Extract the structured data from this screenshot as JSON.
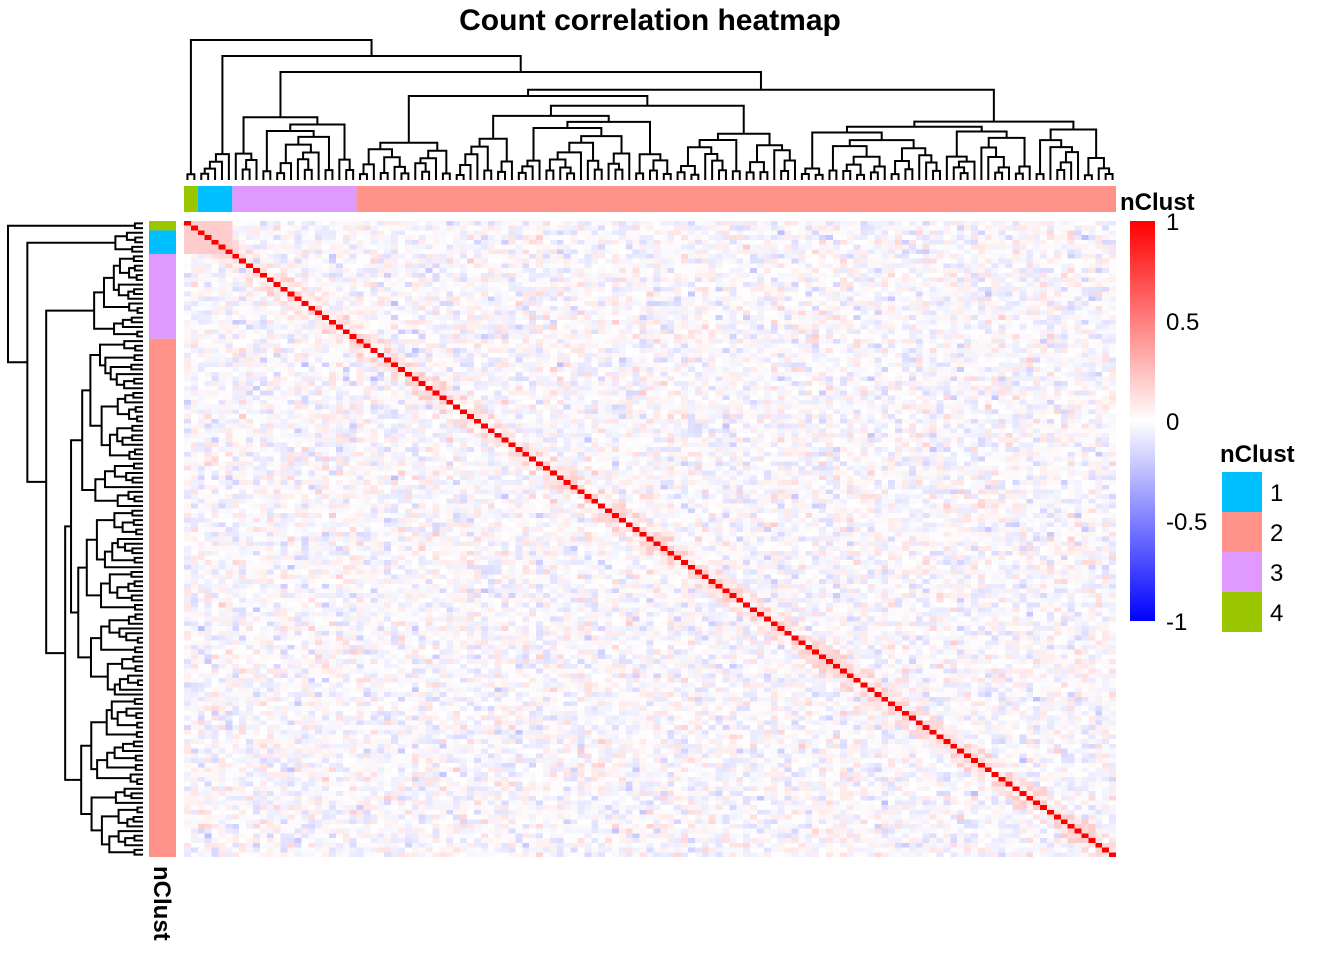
{
  "chart_data": {
    "type": "heatmap",
    "title": "Count correlation heatmap",
    "matrix_size": 135,
    "diagonal_value": 1,
    "off_diagonal_typical_range": [
      -0.25,
      0.2
    ],
    "value_scale": {
      "min": -1,
      "max": 1,
      "colors": {
        "low": "#0000FF",
        "mid": "#FFFFFF",
        "high": "#FF0000"
      },
      "ticks": [
        1,
        0.5,
        0,
        -0.5,
        -1
      ],
      "tick_labels": [
        "1",
        "0.5",
        "0",
        "-0.5",
        "-1"
      ]
    },
    "annotation": {
      "name": "nClust",
      "column_label": "nClust",
      "row_label": "nClust",
      "order": [
        {
          "cluster": "4",
          "count": 2
        },
        {
          "cluster": "1",
          "count": 5
        },
        {
          "cluster": "3",
          "count": 18
        },
        {
          "cluster": "2",
          "count": 110
        }
      ]
    },
    "legend": {
      "title": "nClust",
      "items": [
        {
          "label": "1",
          "color": "#00BFFF"
        },
        {
          "label": "2",
          "color": "#FF9389"
        },
        {
          "label": "3",
          "color": "#DF99FF"
        },
        {
          "label": "4",
          "color": "#99C600"
        }
      ]
    },
    "dendrograms": {
      "rows": true,
      "columns": true
    }
  }
}
